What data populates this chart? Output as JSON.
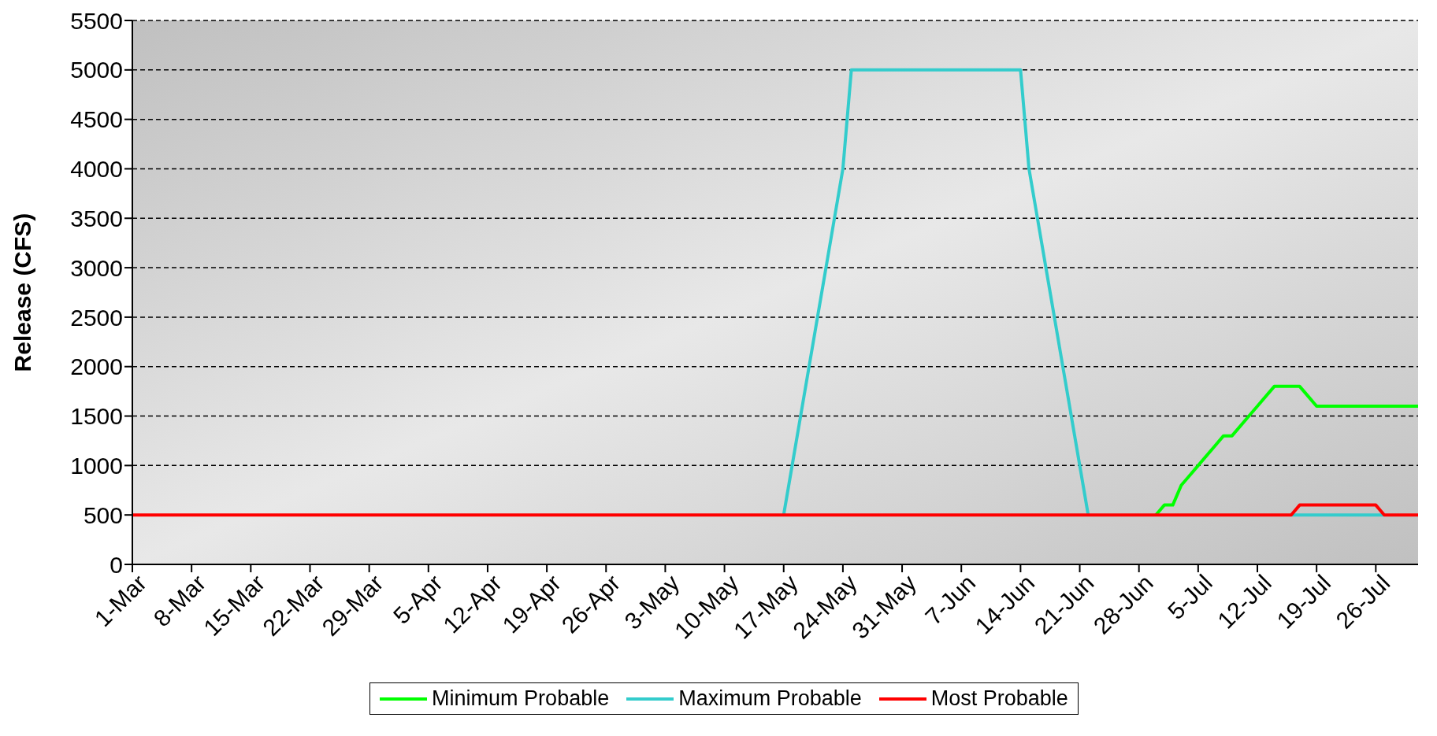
{
  "chart_data": {
    "type": "line",
    "ylabel": "Release (CFS)",
    "xlim": [
      "--03-01",
      "--07-31"
    ],
    "xticks": [
      {
        "value": "--03-01",
        "label": "1-Mar"
      },
      {
        "value": "--03-08",
        "label": "8-Mar"
      },
      {
        "value": "--03-15",
        "label": "15-Mar"
      },
      {
        "value": "--03-22",
        "label": "22-Mar"
      },
      {
        "value": "--03-29",
        "label": "29-Mar"
      },
      {
        "value": "--04-05",
        "label": "5-Apr"
      },
      {
        "value": "--04-12",
        "label": "12-Apr"
      },
      {
        "value": "--04-19",
        "label": "19-Apr"
      },
      {
        "value": "--04-26",
        "label": "26-Apr"
      },
      {
        "value": "--05-03",
        "label": "3-May"
      },
      {
        "value": "--05-10",
        "label": "10-May"
      },
      {
        "value": "--05-17",
        "label": "17-May"
      },
      {
        "value": "--05-24",
        "label": "24-May"
      },
      {
        "value": "--05-31",
        "label": "31-May"
      },
      {
        "value": "--06-07",
        "label": "7-Jun"
      },
      {
        "value": "--06-14",
        "label": "14-Jun"
      },
      {
        "value": "--06-21",
        "label": "21-Jun"
      },
      {
        "value": "--06-28",
        "label": "28-Jun"
      },
      {
        "value": "--07-05",
        "label": "5-Jul"
      },
      {
        "value": "--07-12",
        "label": "12-Jul"
      },
      {
        "value": "--07-19",
        "label": "19-Jul"
      },
      {
        "value": "--07-26",
        "label": "26-Jul"
      }
    ],
    "ylim": [
      0,
      5500
    ],
    "yticks": [
      0,
      500,
      1000,
      1500,
      2000,
      2500,
      3000,
      3500,
      4000,
      4500,
      5000,
      5500
    ],
    "grid": "y",
    "legend": "bottom",
    "series": [
      {
        "name": "Minimum Probable",
        "color": "#00ff00",
        "x": [
          "--06-30",
          "--07-01",
          "--07-02",
          "--07-03",
          "--07-04",
          "--07-05",
          "--07-07",
          "--07-08",
          "--07-09",
          "--07-11",
          "--07-12",
          "--07-14",
          "--07-17",
          "--07-18",
          "--07-19",
          "--07-31"
        ],
        "values": [
          500,
          600,
          600,
          800,
          900,
          1000,
          1200,
          1300,
          1300,
          1500,
          1600,
          1800,
          1800,
          1700,
          1600,
          1600
        ]
      },
      {
        "name": "Maximum Probable",
        "color": "#33cccc",
        "x": [
          "--05-17",
          "--05-18",
          "--05-19",
          "--05-20",
          "--05-21",
          "--05-22",
          "--05-23",
          "--05-24",
          "--05-25",
          "--06-14",
          "--06-15",
          "--06-16",
          "--06-17",
          "--06-18",
          "--06-19",
          "--06-20",
          "--06-21",
          "--06-22",
          "--07-05",
          "--07-16",
          "--07-27"
        ],
        "values": [
          500,
          1000,
          1500,
          2000,
          2500,
          3000,
          3500,
          4000,
          5000,
          5000,
          4000,
          3500,
          3000,
          2500,
          2000,
          1500,
          1000,
          500,
          null,
          500,
          500
        ]
      },
      {
        "name": "Most Probable",
        "color": "#ff0000",
        "x": [
          "--03-01",
          "--07-16",
          "--07-17",
          "--07-26",
          "--07-27",
          "--07-31"
        ],
        "values": [
          500,
          500,
          600,
          600,
          500,
          500
        ]
      }
    ]
  }
}
